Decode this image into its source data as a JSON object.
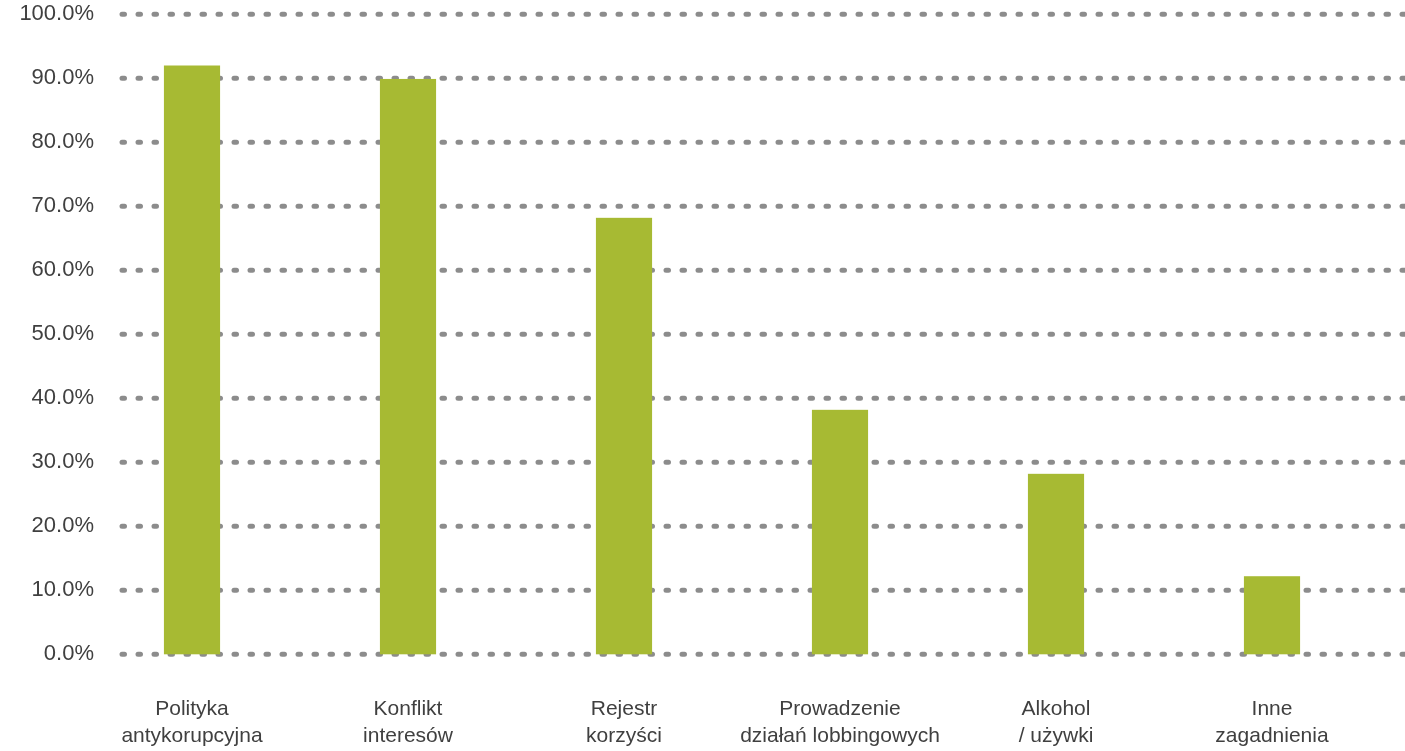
{
  "chart_data": {
    "type": "bar",
    "categories": [
      "Polityka antykorupcyjna",
      "Konflikt interesów",
      "Rejestr korzyści",
      "Prowadzenie działań lobbingowych",
      "Alkohol / używki",
      "Inne zagadnienia"
    ],
    "values": [
      92.0,
      89.9,
      68.2,
      38.2,
      28.2,
      12.2
    ],
    "color": "#a7ba33",
    "ylim": [
      0,
      100
    ],
    "yticks": [
      {
        "value": 0,
        "label": "0.0%"
      },
      {
        "value": 10,
        "label": "10.0%"
      },
      {
        "value": 20,
        "label": "20.0%"
      },
      {
        "value": 30,
        "label": "30.0%"
      },
      {
        "value": 40,
        "label": "40.0%"
      },
      {
        "value": 50,
        "label": "50.0%"
      },
      {
        "value": 60,
        "label": "60.0%"
      },
      {
        "value": 70,
        "label": "70.0%"
      },
      {
        "value": 80,
        "label": "80.0%"
      },
      {
        "value": 90,
        "label": "90.0%"
      },
      {
        "value": 100,
        "label": "100.0%"
      }
    ],
    "grid": "y"
  }
}
